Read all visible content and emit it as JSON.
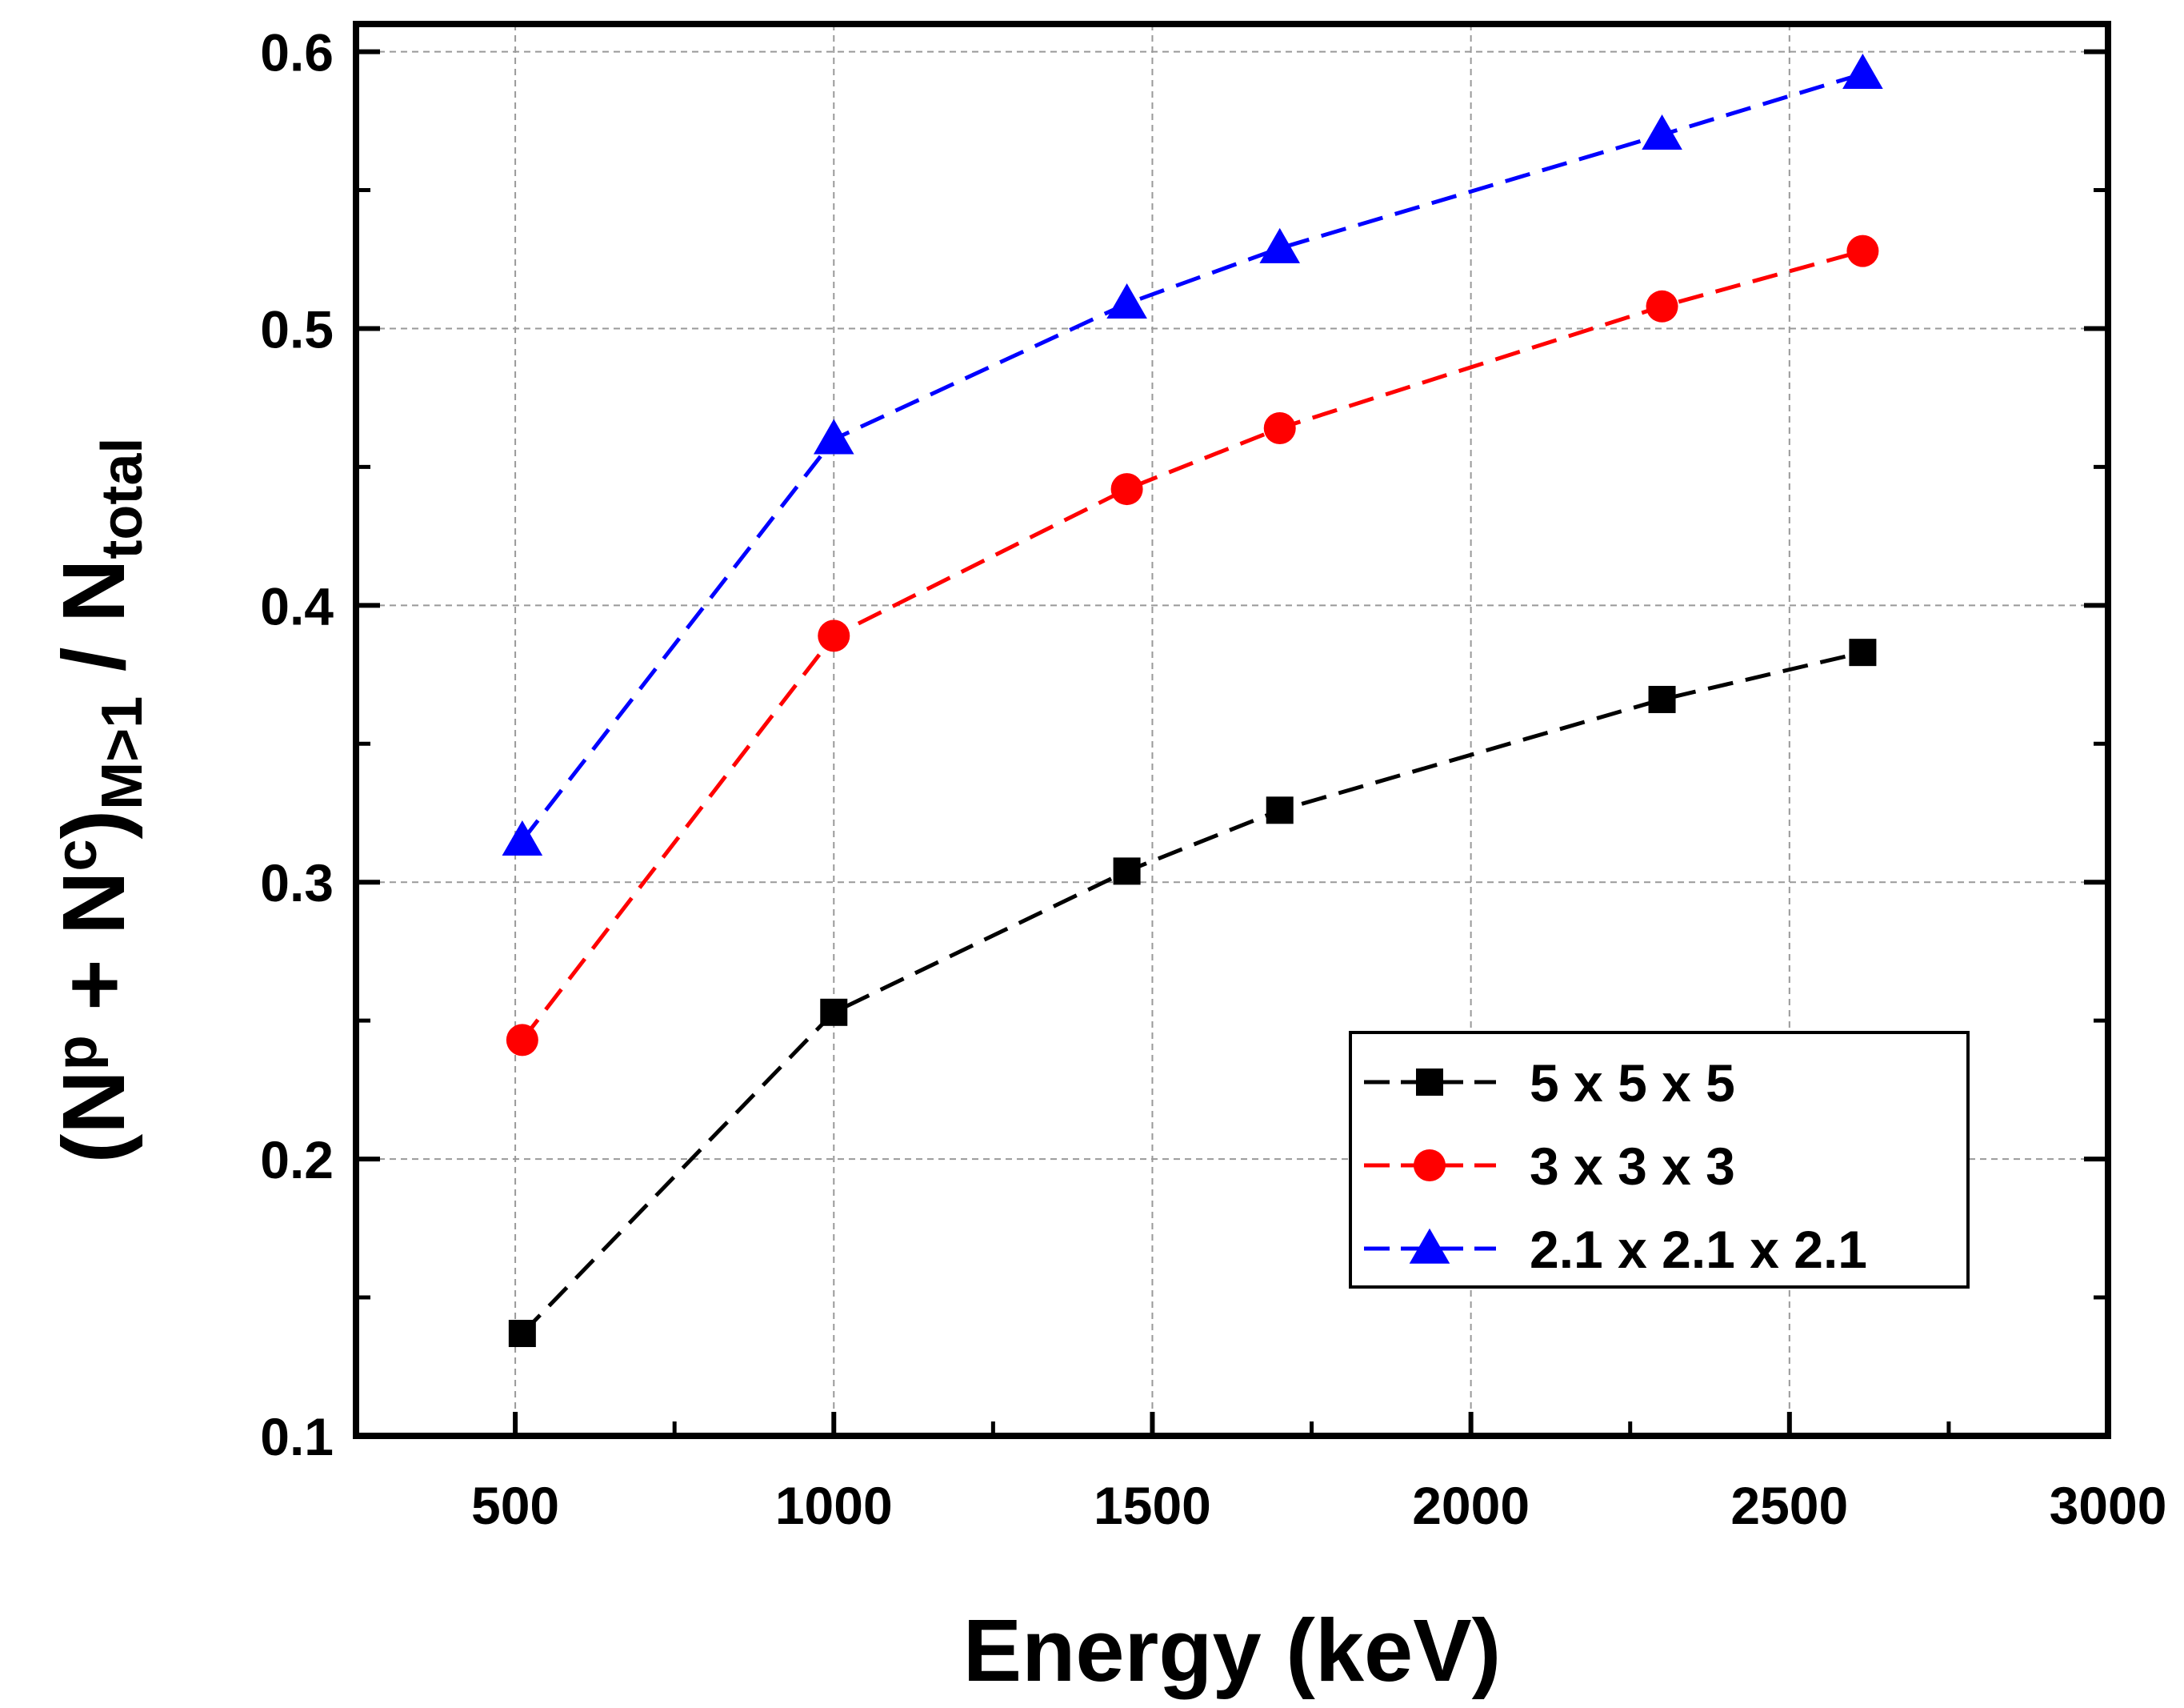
{
  "chart_data": {
    "type": "line",
    "title": "",
    "xlabel": "Energy (keV)",
    "ylabel": {
      "open": "(N",
      "sup1": "p",
      "plus": " + N",
      "sup2": "c",
      "close": ")",
      "sub1": "M>1",
      "slash": " / N",
      "sub2": "total"
    },
    "xlim": [
      250,
      3000
    ],
    "ylim": [
      0.1,
      0.61
    ],
    "xticks": [
      500,
      1000,
      1500,
      2000,
      2500,
      3000
    ],
    "xtick_labels": [
      "500",
      "1000",
      "1500",
      "2000",
      "2500",
      "3000"
    ],
    "xminor": [
      750,
      1250,
      1750,
      2250,
      2750
    ],
    "yticks": [
      0.1,
      0.2,
      0.3,
      0.4,
      0.5,
      0.6
    ],
    "ytick_labels": [
      "0.1",
      "0.2",
      "0.3",
      "0.4",
      "0.5",
      "0.6"
    ],
    "yminor": [
      0.15,
      0.25,
      0.35,
      0.45,
      0.55
    ],
    "grid": true,
    "legend_position": "bottom-right",
    "x": [
      511,
      1000,
      1460,
      1700,
      2300,
      2615
    ],
    "series": [
      {
        "name": "5 x 5 x 5",
        "color": "#000000",
        "marker": "square",
        "values": [
          0.137,
          0.253,
          0.304,
          0.326,
          0.366,
          0.383
        ]
      },
      {
        "name": "3 x 3 x 3",
        "color": "#ff0000",
        "marker": "circle",
        "values": [
          0.243,
          0.389,
          0.442,
          0.464,
          0.508,
          0.528
        ]
      },
      {
        "name": "2.1 x 2.1 x 2.1",
        "color": "#0000ff",
        "marker": "triangle",
        "values": [
          0.315,
          0.46,
          0.509,
          0.529,
          0.57,
          0.592
        ]
      }
    ]
  }
}
